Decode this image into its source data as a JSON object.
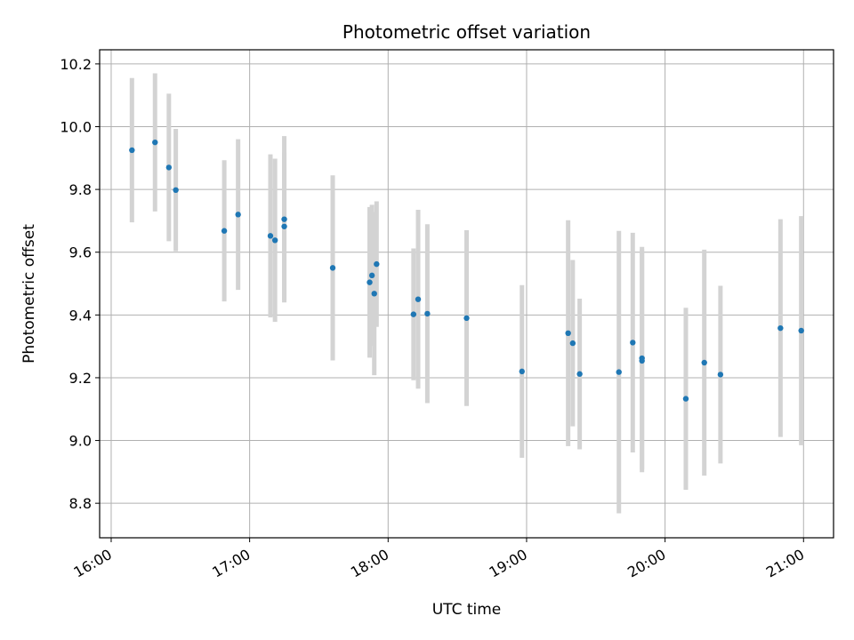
{
  "chart_data": {
    "type": "scatter",
    "title": "Photometric offset variation",
    "xlabel": "UTC time",
    "ylabel": "Photometric offset",
    "xlim": [
      "15:55",
      "21:13"
    ],
    "ylim": [
      8.69,
      10.245
    ],
    "x_ticks": [
      "16:00",
      "17:00",
      "18:00",
      "19:00",
      "20:00",
      "21:00"
    ],
    "y_ticks": [
      "8.8",
      "9.0",
      "9.2",
      "9.4",
      "9.6",
      "9.8",
      "10.0",
      "10.2"
    ],
    "grid": true,
    "colors": {
      "point": "#1f77b4",
      "error_bar": "#d3d3d3"
    },
    "series": [
      {
        "points": [
          {
            "x": "16:09",
            "y": 9.925,
            "err": 0.23
          },
          {
            "x": "16:19",
            "y": 9.95,
            "err": 0.22
          },
          {
            "x": "16:25",
            "y": 9.87,
            "err": 0.235
          },
          {
            "x": "16:28",
            "y": 9.798,
            "err": 0.195
          },
          {
            "x": "16:49",
            "y": 9.668,
            "err": 0.225
          },
          {
            "x": "16:55",
            "y": 9.72,
            "err": 0.24
          },
          {
            "x": "17:09",
            "y": 9.652,
            "err": 0.26
          },
          {
            "x": "17:11",
            "y": 9.638,
            "err": 0.26
          },
          {
            "x": "17:15",
            "y": 9.705,
            "err": 0.265
          },
          {
            "x": "17:15",
            "y": 9.682,
            "err": 0.235
          },
          {
            "x": "17:36",
            "y": 9.55,
            "err": 0.295
          },
          {
            "x": "17:52",
            "y": 9.504,
            "err": 0.24
          },
          {
            "x": "17:53",
            "y": 9.526,
            "err": 0.225
          },
          {
            "x": "17:54",
            "y": 9.468,
            "err": 0.26
          },
          {
            "x": "17:55",
            "y": 9.562,
            "err": 0.2
          },
          {
            "x": "18:11",
            "y": 9.402,
            "err": 0.21
          },
          {
            "x": "18:13",
            "y": 9.45,
            "err": 0.285
          },
          {
            "x": "18:17",
            "y": 9.404,
            "err": 0.285
          },
          {
            "x": "18:34",
            "y": 9.39,
            "err": 0.28
          },
          {
            "x": "18:58",
            "y": 9.22,
            "err": 0.275
          },
          {
            "x": "19:18",
            "y": 9.342,
            "err": 0.36
          },
          {
            "x": "19:20",
            "y": 9.31,
            "err": 0.265
          },
          {
            "x": "19:23",
            "y": 9.212,
            "err": 0.24
          },
          {
            "x": "19:40",
            "y": 9.218,
            "err": 0.45
          },
          {
            "x": "19:46",
            "y": 9.312,
            "err": 0.35
          },
          {
            "x": "19:50",
            "y": 9.262,
            "err": 0.355
          },
          {
            "x": "19:50",
            "y": 9.254,
            "err": 0.355
          },
          {
            "x": "20:09",
            "y": 9.133,
            "err": 0.29
          },
          {
            "x": "20:17",
            "y": 9.248,
            "err": 0.36
          },
          {
            "x": "20:24",
            "y": 9.21,
            "err": 0.283
          },
          {
            "x": "20:50",
            "y": 9.358,
            "err": 0.347
          },
          {
            "x": "20:59",
            "y": 9.35,
            "err": 0.365
          }
        ]
      }
    ]
  }
}
